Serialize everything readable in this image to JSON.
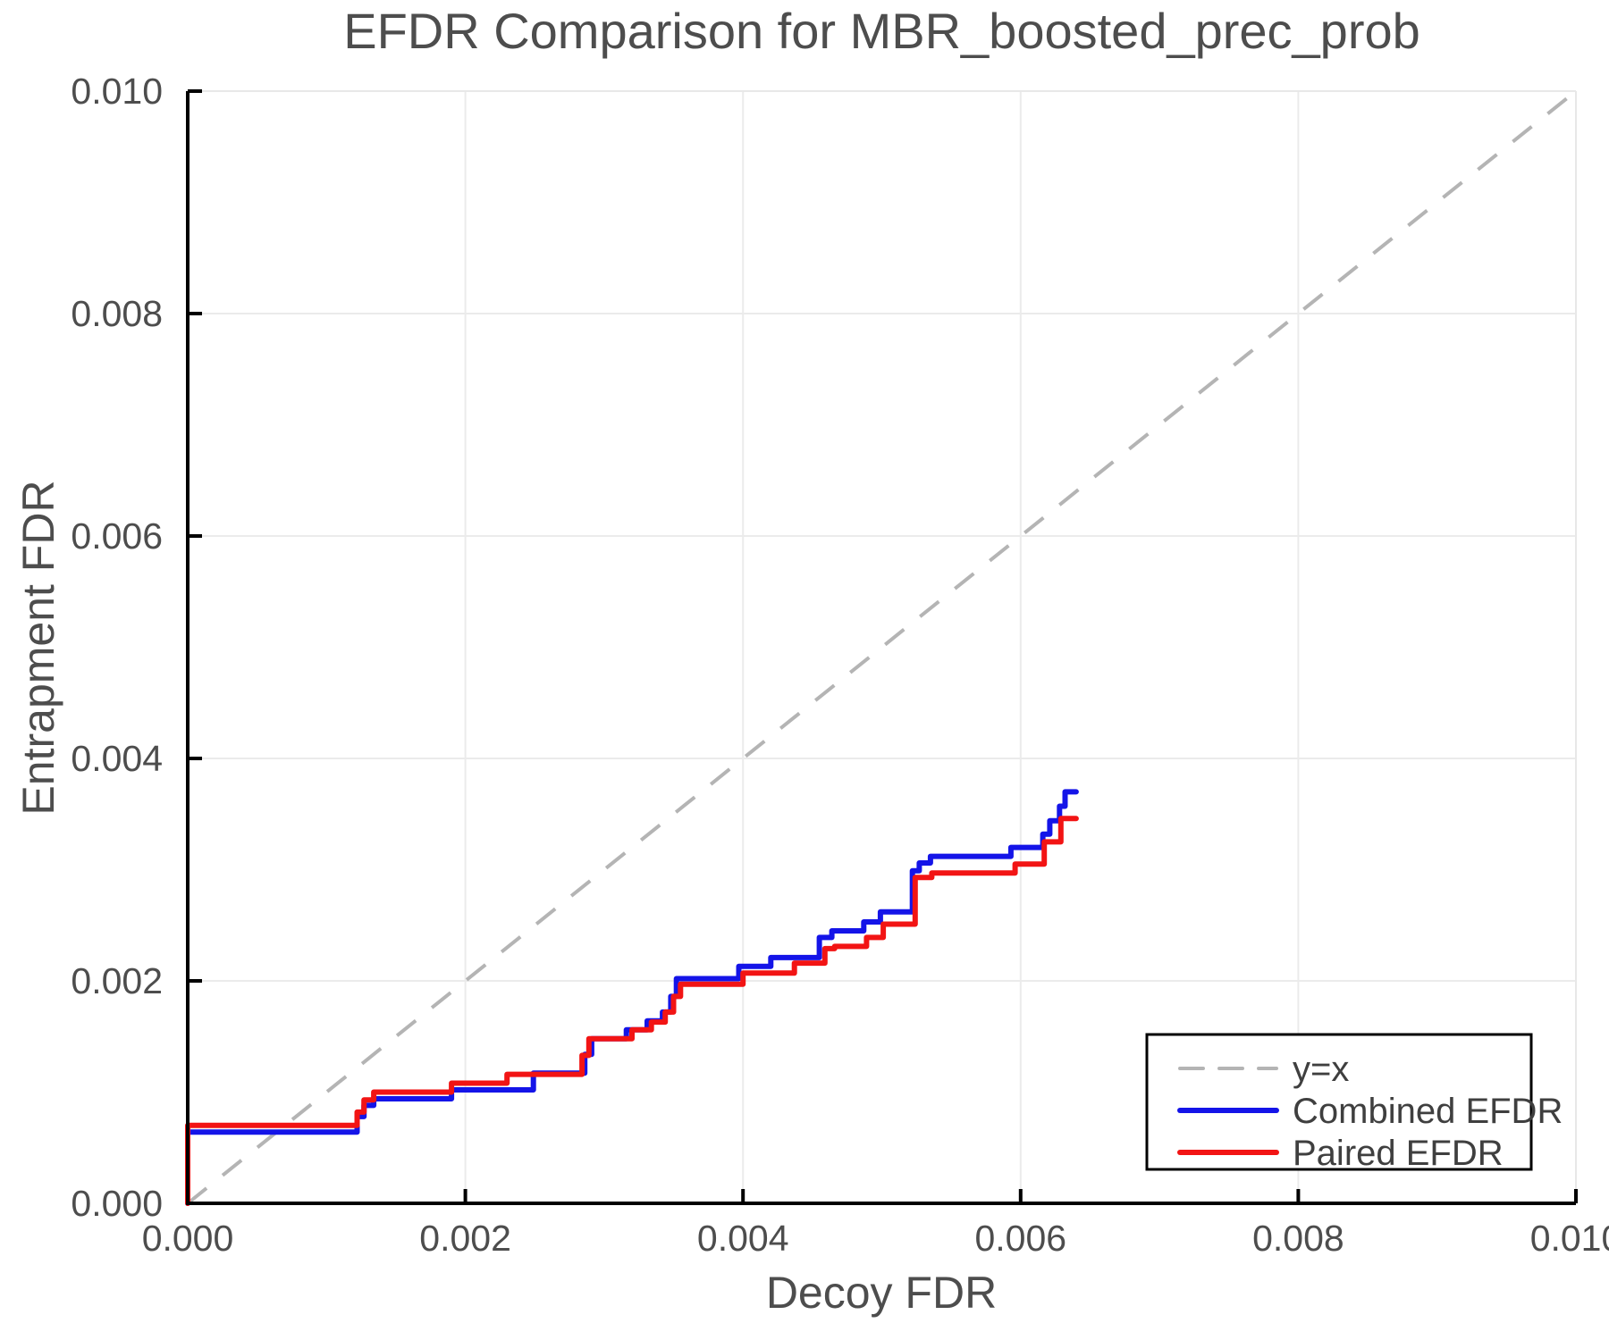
{
  "chart_data": {
    "type": "line",
    "title": "EFDR Comparison for MBR_boosted_prec_prob",
    "xlabel": "Decoy FDR",
    "ylabel": "Entrapment FDR",
    "xlim": [
      0.0,
      0.01
    ],
    "ylim": [
      0.0,
      0.01
    ],
    "x_ticks": [
      0.0,
      0.002,
      0.004,
      0.006,
      0.008,
      0.01
    ],
    "y_ticks": [
      0.0,
      0.002,
      0.004,
      0.006,
      0.008,
      0.01
    ],
    "x_tick_labels": [
      "0.000",
      "0.002",
      "0.004",
      "0.006",
      "0.008",
      "0.010"
    ],
    "y_tick_labels": [
      "0.000",
      "0.002",
      "0.004",
      "0.006",
      "0.008",
      "0.010"
    ],
    "grid": true,
    "legend_position": "lower right",
    "colors": {
      "grid": "#ebebeb",
      "frame": "#e8e8e8",
      "spine": "#000000",
      "text": "#4d4d4d",
      "legend_text": "#3f3f3f",
      "identity": "#b4b4b4",
      "combined": "#1414e8",
      "paired": "#f21414"
    },
    "reference_line": {
      "label": "y=x",
      "style": "dashed",
      "from": [
        0.0,
        0.0
      ],
      "to": [
        0.01,
        0.01
      ]
    },
    "series": [
      {
        "name": "Combined EFDR",
        "step": true,
        "points": [
          [
            0.0,
            0.0
          ],
          [
            0.0,
            0.00064
          ],
          [
            0.00122,
            0.00078
          ],
          [
            0.00127,
            0.00088
          ],
          [
            0.00134,
            0.00094
          ],
          [
            0.0019,
            0.00102
          ],
          [
            0.00249,
            0.00117
          ],
          [
            0.00286,
            0.00134
          ],
          [
            0.00291,
            0.00148
          ],
          [
            0.00316,
            0.00156
          ],
          [
            0.00331,
            0.00164
          ],
          [
            0.00342,
            0.00172
          ],
          [
            0.00348,
            0.00186
          ],
          [
            0.00352,
            0.00202
          ],
          [
            0.00397,
            0.00213
          ],
          [
            0.0042,
            0.00221
          ],
          [
            0.00455,
            0.00239
          ],
          [
            0.00464,
            0.00245
          ],
          [
            0.00487,
            0.00253
          ],
          [
            0.00499,
            0.00262
          ],
          [
            0.00522,
            0.00299
          ],
          [
            0.00527,
            0.00306
          ],
          [
            0.00535,
            0.00312
          ],
          [
            0.00593,
            0.0032
          ],
          [
            0.00616,
            0.00332
          ],
          [
            0.00621,
            0.00344
          ],
          [
            0.00628,
            0.00357
          ],
          [
            0.00632,
            0.0037
          ],
          [
            0.0064,
            0.0037
          ]
        ]
      },
      {
        "name": "Paired EFDR",
        "step": true,
        "points": [
          [
            0.0,
            0.0
          ],
          [
            0.0,
            0.0007
          ],
          [
            0.00122,
            0.00082
          ],
          [
            0.00127,
            0.00093
          ],
          [
            0.00134,
            0.001
          ],
          [
            0.0019,
            0.00108
          ],
          [
            0.0023,
            0.00116
          ],
          [
            0.00284,
            0.00133
          ],
          [
            0.00289,
            0.00148
          ],
          [
            0.0032,
            0.00156
          ],
          [
            0.00334,
            0.00163
          ],
          [
            0.00344,
            0.00172
          ],
          [
            0.0035,
            0.00186
          ],
          [
            0.00355,
            0.00197
          ],
          [
            0.004,
            0.00207
          ],
          [
            0.00437,
            0.00216
          ],
          [
            0.00459,
            0.00229
          ],
          [
            0.00466,
            0.00231
          ],
          [
            0.00489,
            0.00239
          ],
          [
            0.00501,
            0.00251
          ],
          [
            0.00524,
            0.00293
          ],
          [
            0.00536,
            0.00297
          ],
          [
            0.00596,
            0.00305
          ],
          [
            0.00617,
            0.00325
          ],
          [
            0.00629,
            0.00346
          ],
          [
            0.0064,
            0.00346
          ]
        ]
      }
    ],
    "legend": [
      {
        "label": "y=x",
        "color": "#b4b4b4",
        "dashed": true
      },
      {
        "label": "Combined EFDR",
        "color": "#1414e8",
        "dashed": false
      },
      {
        "label": "Paired EFDR",
        "color": "#f21414",
        "dashed": false
      }
    ]
  }
}
